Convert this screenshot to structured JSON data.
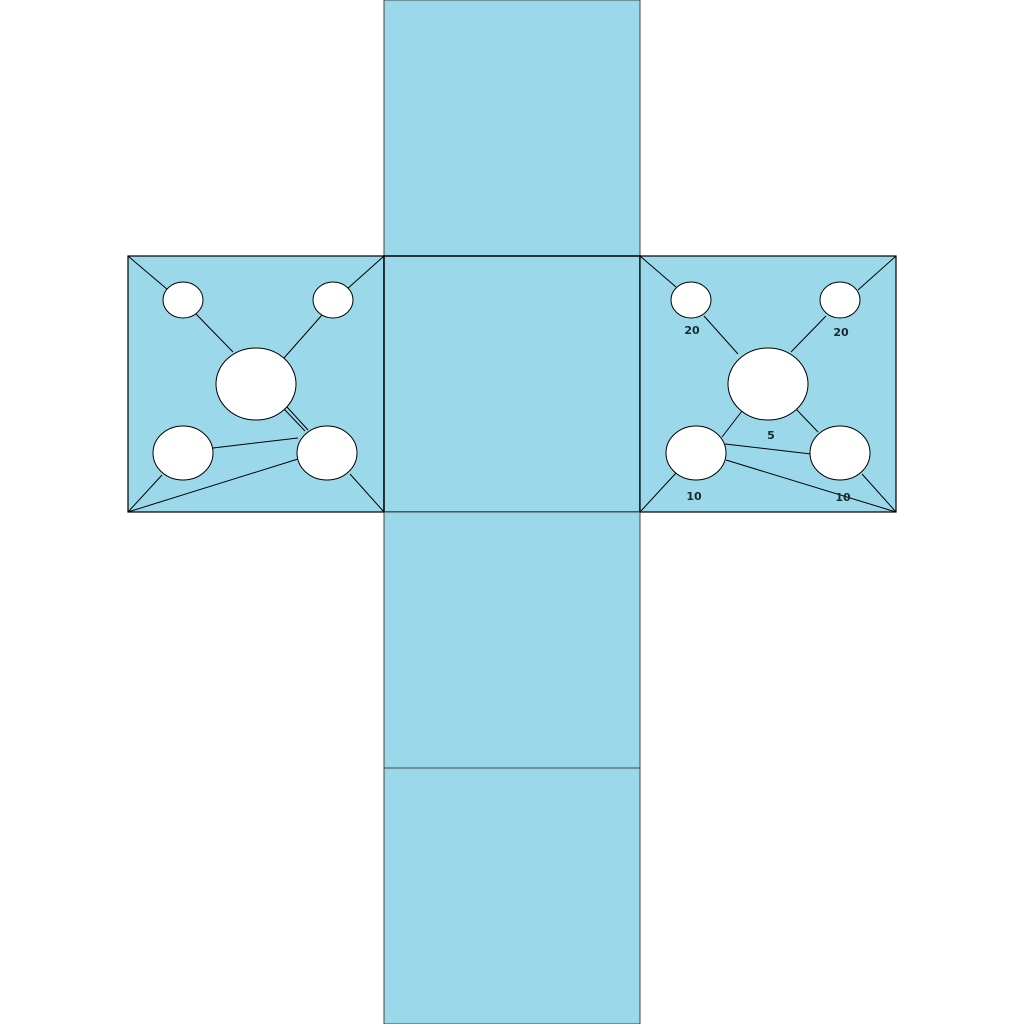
{
  "colors": {
    "face_fill": "#9bd9ea",
    "edge": "#000000",
    "node_fill": "#ffffff",
    "label": "#1a2a33",
    "background": "#ffffff"
  },
  "faces": [
    "top",
    "left",
    "center",
    "right",
    "bottom",
    "base"
  ],
  "left_panel": {
    "nodes": [
      "top-left",
      "top-right",
      "hub",
      "bottom-left",
      "bottom-right"
    ]
  },
  "right_panel": {
    "weights": {
      "top_left": "20",
      "top_right": "20",
      "hub": "5",
      "bottom_left": "10",
      "bottom_right": "10"
    }
  }
}
